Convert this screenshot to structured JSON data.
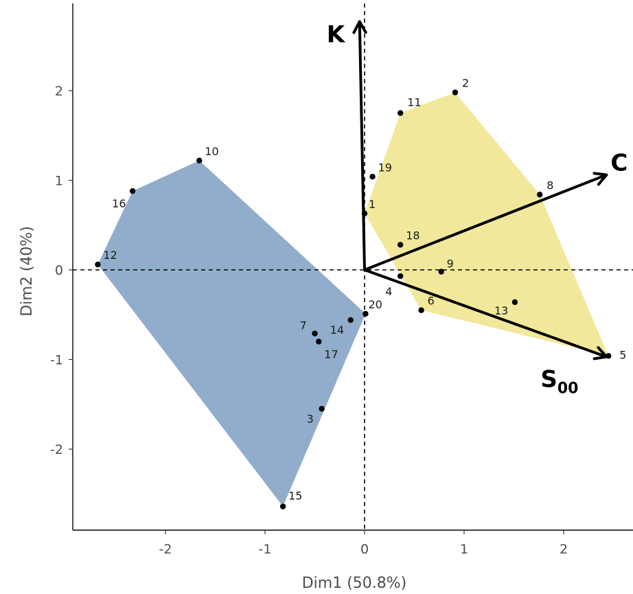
{
  "chart_data": {
    "type": "scatter",
    "xlabel": "Dim1 (50.8%)",
    "ylabel": "Dim2 (40%)",
    "xlim": [
      -2.95,
      2.7
    ],
    "ylim": [
      -2.9,
      2.9
    ],
    "x_ticks": [
      -2,
      -1,
      0,
      1,
      2
    ],
    "y_ticks": [
      -2,
      -1,
      0,
      1,
      2
    ],
    "reference_lines": {
      "x": 0,
      "y": 0,
      "style": "dashed"
    },
    "points": [
      {
        "id": "1",
        "x": 0.0,
        "y": 0.63
      },
      {
        "id": "2",
        "x": 0.91,
        "y": 1.98
      },
      {
        "id": "3",
        "x": -0.43,
        "y": -1.55
      },
      {
        "id": "4",
        "x": 0.36,
        "y": -0.07
      },
      {
        "id": "5",
        "x": 2.45,
        "y": -0.96
      },
      {
        "id": "6",
        "x": 0.57,
        "y": -0.45
      },
      {
        "id": "7",
        "x": -0.5,
        "y": -0.71
      },
      {
        "id": "8",
        "x": 1.76,
        "y": 0.84
      },
      {
        "id": "9",
        "x": 0.77,
        "y": -0.02
      },
      {
        "id": "10",
        "x": -1.66,
        "y": 1.22
      },
      {
        "id": "11",
        "x": 0.36,
        "y": 1.75
      },
      {
        "id": "12",
        "x": -2.68,
        "y": 0.06
      },
      {
        "id": "13",
        "x": 1.51,
        "y": -0.36
      },
      {
        "id": "14",
        "x": -0.14,
        "y": -0.56
      },
      {
        "id": "15",
        "x": -0.82,
        "y": -2.64
      },
      {
        "id": "16",
        "x": -2.33,
        "y": 0.88
      },
      {
        "id": "17",
        "x": -0.46,
        "y": -0.8
      },
      {
        "id": "18",
        "x": 0.36,
        "y": 0.28
      },
      {
        "id": "19",
        "x": 0.08,
        "y": 1.04
      },
      {
        "id": "20",
        "x": 0.01,
        "y": -0.49
      }
    ],
    "groups": [
      {
        "color": "#7f9fc2",
        "hull": [
          "10",
          "16",
          "12",
          "15",
          "20"
        ]
      },
      {
        "color": "#ede07a",
        "hull": [
          "2",
          "11",
          "1",
          "6",
          "5",
          "8"
        ]
      }
    ],
    "vectors": [
      {
        "label": "K",
        "sub": "",
        "x": -0.05,
        "y": 2.77
      },
      {
        "label": "C",
        "sub": "",
        "x": 2.43,
        "y": 1.06
      },
      {
        "label": "S",
        "sub": "00",
        "x": 2.43,
        "y": -0.97
      }
    ]
  }
}
